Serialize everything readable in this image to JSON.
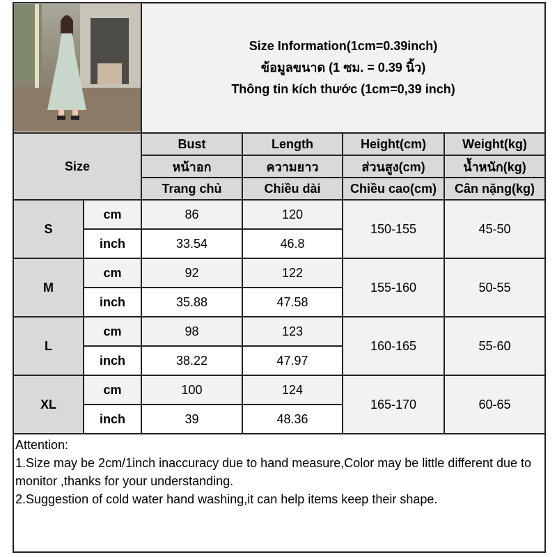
{
  "title": {
    "line1": "Size Information(1cm=0.39inch)",
    "line2": "ข้อมูลขนาด (1 ซม. = 0.39 นิ้ว)",
    "line3": "Thông tin kích thước (1cm=0,39 inch)"
  },
  "size_label": "Size",
  "columns": [
    {
      "en": "Bust",
      "th": "หน้าอก",
      "vi": "Trang chủ"
    },
    {
      "en": "Length",
      "th": "ความยาว",
      "vi": "Chiều dài"
    },
    {
      "en": "Height(cm)",
      "th": "ส่วนสูง(cm)",
      "vi": "Chiều cao(cm)"
    },
    {
      "en": "Weight(kg)",
      "th": "น้ำหนัก(kg)",
      "vi": "Cân nặng(kg)"
    }
  ],
  "rows": [
    {
      "size": "S",
      "cm_label": "cm",
      "inch_label": "inch",
      "bust_cm": "86",
      "length_cm": "120",
      "bust_inch": "33.54",
      "length_inch": "46.8",
      "height": "150-155",
      "weight": "45-50"
    },
    {
      "size": "M",
      "cm_label": "cm",
      "inch_label": "inch",
      "bust_cm": "92",
      "length_cm": "122",
      "bust_inch": "35.88",
      "length_inch": "47.58",
      "height": "155-160",
      "weight": "50-55"
    },
    {
      "size": "L",
      "cm_label": "cm",
      "inch_label": "inch",
      "bust_cm": "98",
      "length_cm": "123",
      "bust_inch": "38.22",
      "length_inch": "47.97",
      "height": "160-165",
      "weight": "55-60"
    },
    {
      "size": "XL",
      "cm_label": "cm",
      "inch_label": "inch",
      "bust_cm": "100",
      "length_cm": "124",
      "bust_inch": "39",
      "length_inch": "48.36",
      "height": "165-170",
      "weight": "60-65"
    }
  ],
  "attention": {
    "heading": "Attention:",
    "note1": "1.Size may be 2cm/1inch inaccuracy due to hand measure,Color may be little different due to monitor ,thanks for your understanding.",
    "note2": "2.Suggestion of cold water hand washing,it can help items keep their shape."
  },
  "colors": {
    "header_gray": "#d9d9d9",
    "light_gray": "#f2f2f2",
    "border": "#222222"
  }
}
